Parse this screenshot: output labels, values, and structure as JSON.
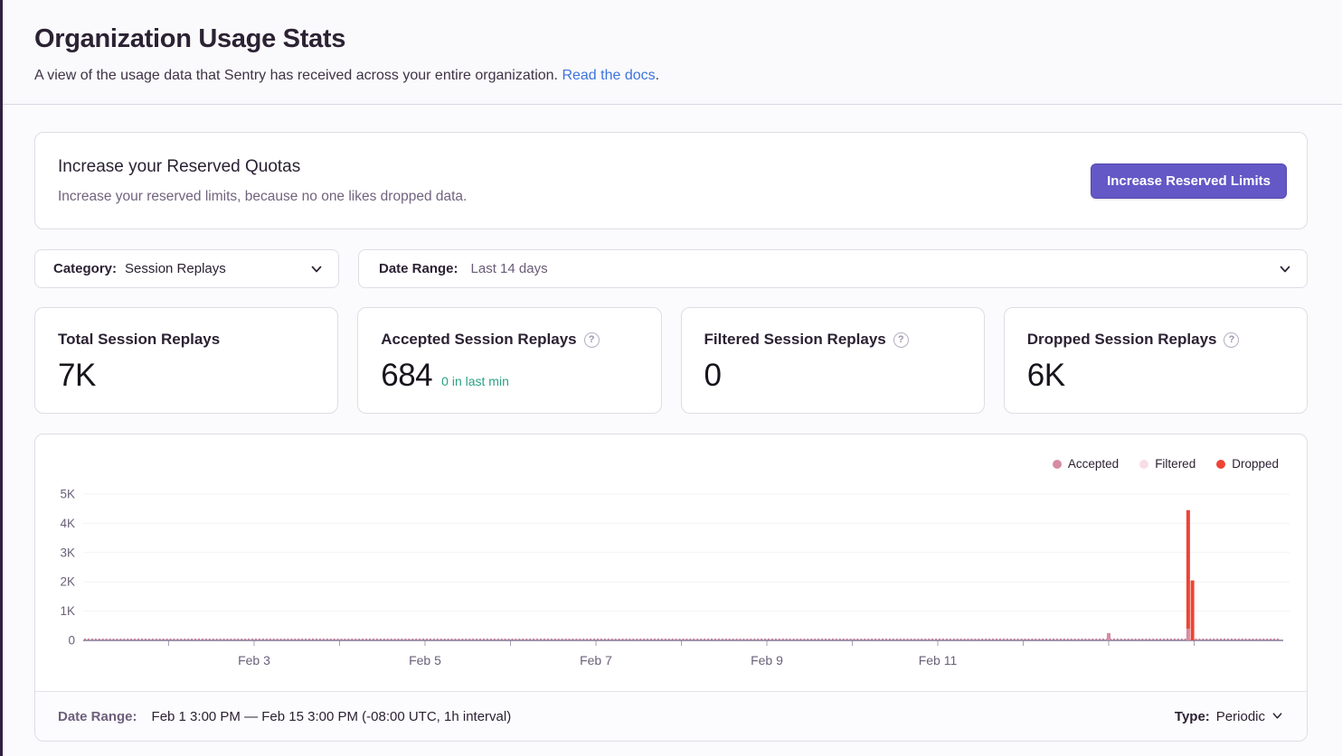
{
  "page": {
    "title": "Organization Usage Stats",
    "subtitle": "A view of the usage data that Sentry has received across your entire organization.",
    "docs_link": "Read the docs",
    "subtitle_period": "."
  },
  "quota_banner": {
    "title": "Increase your Reserved Quotas",
    "description": "Increase your reserved limits, because no one likes dropped data.",
    "button_label": "Increase Reserved Limits"
  },
  "filters": {
    "category_label": "Category:",
    "category_value": "Session Replays",
    "date_range_label": "Date Range:",
    "date_range_value": "Last 14 days"
  },
  "stat_cards": [
    {
      "title": "Total Session Replays",
      "value": "7K",
      "sub": "",
      "has_help": false
    },
    {
      "title": "Accepted Session Replays",
      "value": "684",
      "sub": "0 in last min",
      "has_help": true
    },
    {
      "title": "Filtered Session Replays",
      "value": "0",
      "sub": "",
      "has_help": true
    },
    {
      "title": "Dropped Session Replays",
      "value": "6K",
      "sub": "",
      "has_help": true
    }
  ],
  "chart_data": {
    "type": "bar",
    "stacked": true,
    "interval": "1h",
    "x_range": [
      "Feb 1 3:00 PM",
      "Feb 15 3:00 PM"
    ],
    "x_days_total": 14,
    "x_labels": [
      "Feb 3",
      "Feb 5",
      "Feb 7",
      "Feb 9",
      "Feb 11"
    ],
    "x_label_day_offsets": [
      2,
      4,
      6,
      8,
      10
    ],
    "ylim": [
      0,
      5000
    ],
    "yticks": [
      "0",
      "1K",
      "2K",
      "3K",
      "4K",
      "5K"
    ],
    "legend_position": "top-right",
    "grid": true,
    "series": [
      {
        "name": "Accepted",
        "color": "#d78ba4",
        "baseline_hourly_value": 60,
        "points": [
          {
            "day": 12.0,
            "value": 250
          },
          {
            "day": 12.93,
            "value": 400
          }
        ]
      },
      {
        "name": "Filtered",
        "color": "#f8dde6",
        "points": []
      },
      {
        "name": "Dropped",
        "color": "#ee4435",
        "points": [
          {
            "day": 12.93,
            "value": 4050
          },
          {
            "day": 12.98,
            "value": 2050
          }
        ]
      }
    ]
  },
  "chart_footer": {
    "date_range_label": "Date Range:",
    "date_range_value": "Feb 1 3:00 PM — Feb 15 3:00 PM (-08:00 UTC, 1h interval)",
    "type_label": "Type:",
    "type_value": "Periodic"
  },
  "colors": {
    "accent": "#6358c6",
    "link": "#3c74dd",
    "success": "#2ba185",
    "axis": "#857a94"
  }
}
